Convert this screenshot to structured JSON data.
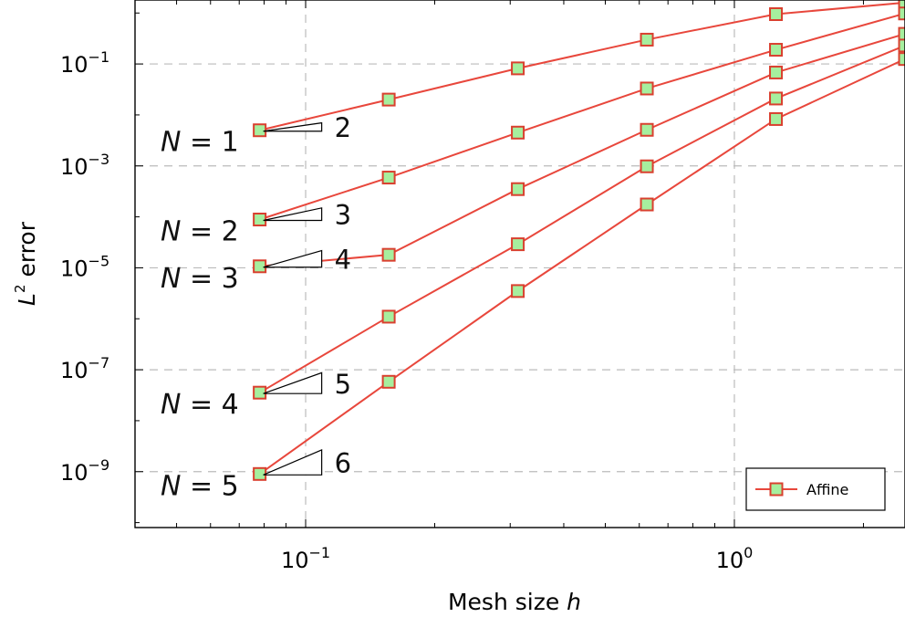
{
  "chart_data": {
    "type": "line",
    "xlabel": "Mesh size",
    "xlabel_var": "h",
    "ylabel": "error",
    "ylabel_prefix": "L",
    "ylabel_sup": "2",
    "xscale": "log",
    "yscale": "log",
    "xlim": [
      0.04,
      2.5
    ],
    "ylim": [
      8e-11,
      1.8
    ],
    "grid": true,
    "legend": {
      "entries": [
        "Affine"
      ],
      "placement": "lower-right"
    },
    "x": [
      0.078125,
      0.15625,
      0.3125,
      0.625,
      1.25,
      2.5
    ],
    "series": [
      {
        "label": "N = 1",
        "values": [
          0.005,
          0.02,
          0.082,
          0.3,
          0.95,
          1.6
        ]
      },
      {
        "label": "N = 2",
        "values": [
          8.87e-05,
          0.00059,
          0.0045,
          0.033,
          0.19,
          0.98
        ]
      },
      {
        "label": "N = 3",
        "values": [
          1.07e-05,
          1.8e-05,
          0.00035,
          0.0051,
          0.068,
          0.39
        ]
      },
      {
        "label": "N = 4",
        "values": [
          3.55e-08,
          1.1e-06,
          2.9e-05,
          0.00098,
          0.021,
          0.23
        ]
      },
      {
        "label": "N = 5",
        "values": [
          9e-10,
          5.8e-08,
          3.5e-06,
          0.000175,
          0.0083,
          0.125
        ]
      }
    ],
    "slopes": [
      "2",
      "3",
      "4",
      "5",
      "6"
    ],
    "colors": {
      "line": "#e8473c",
      "marker_fill": "#a6ef9e",
      "marker_edge": "#d9402f",
      "grid": "#bbbbbb"
    },
    "x_ticks": [
      {
        "value": 0.1,
        "base": "10",
        "exp": "−1"
      },
      {
        "value": 1,
        "base": "10",
        "exp": "0"
      }
    ],
    "y_ticks": [
      {
        "value": 0.1,
        "base": "10",
        "exp": "−1"
      },
      {
        "value": 0.001,
        "base": "10",
        "exp": "−3"
      },
      {
        "value": 1e-05,
        "base": "10",
        "exp": "−5"
      },
      {
        "value": 1e-07,
        "base": "10",
        "exp": "−7"
      },
      {
        "value": 1e-09,
        "base": "10",
        "exp": "−9"
      }
    ]
  }
}
